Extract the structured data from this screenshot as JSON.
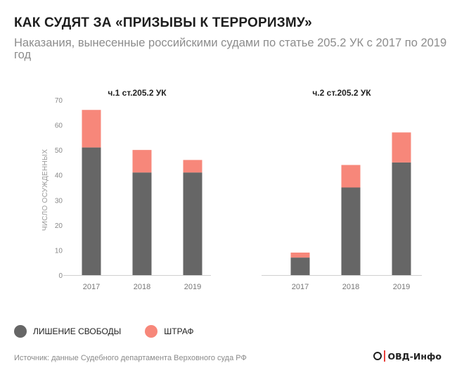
{
  "header": {
    "title": "КАК СУДЯТ ЗА «ПРИЗЫВЫ К ТЕРРОРИЗМУ»",
    "subtitle": "Наказания, вынесенные российскими судами по статье 205.2 УК с 2017 по 2019 год"
  },
  "legend": {
    "items": [
      {
        "label": "ЛИШЕНИЕ СВОБОДЫ",
        "color": "#666666"
      },
      {
        "label": "ШТРАФ",
        "color": "#f7877a"
      }
    ]
  },
  "footer": {
    "source": "Источник: данные Судебного департамента Верховного суда РФ",
    "logo_text": "ОВД-Инфо"
  },
  "chart_data": [
    {
      "type": "bar",
      "stacked": true,
      "title": "ч.1 ст.205.2 УК",
      "categories": [
        "2017",
        "2018",
        "2019"
      ],
      "ylabel": "ЧИСЛО ОСУЖДЕННЫХ",
      "ylim": [
        0,
        70
      ],
      "yticks": [
        "0",
        "10",
        "20",
        "30",
        "40",
        "50",
        "60",
        "70"
      ],
      "series": [
        {
          "name": "ЛИШЕНИЕ СВОБОДЫ",
          "values": [
            51,
            41,
            41
          ],
          "color": "#666666"
        },
        {
          "name": "ШТРАФ",
          "values": [
            15,
            9,
            5
          ],
          "color": "#f7877a"
        }
      ]
    },
    {
      "type": "bar",
      "stacked": true,
      "title": "ч.2 ст.205.2 УК",
      "categories": [
        "2017",
        "2018",
        "2019"
      ],
      "ylim": [
        0,
        70
      ],
      "series": [
        {
          "name": "ЛИШЕНИЕ СВОБОДЫ",
          "values": [
            7,
            35,
            45
          ],
          "color": "#666666"
        },
        {
          "name": "ШТРАФ",
          "values": [
            2,
            9,
            12
          ],
          "color": "#f7877a"
        }
      ]
    }
  ]
}
